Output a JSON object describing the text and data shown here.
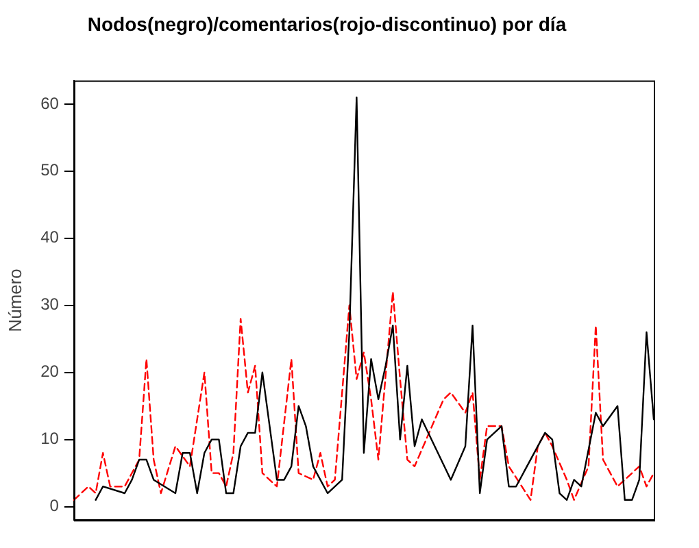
{
  "chart_data": {
    "type": "line",
    "title": "Nodos(negro)/comentarios(rojo-discontinuo) por día",
    "ylabel": "Número",
    "categories": [
      null,
      null,
      null,
      null,
      null,
      null,
      null,
      null,
      null,
      null,
      null,
      null,
      null,
      null,
      null,
      null,
      null,
      null,
      null,
      null,
      null,
      null,
      null,
      null,
      null,
      null,
      null,
      null,
      null,
      null,
      null,
      null,
      null,
      null,
      null,
      null,
      null,
      null,
      null,
      null,
      null,
      null,
      null,
      null,
      null,
      null,
      null,
      null,
      null,
      null,
      null,
      null,
      null,
      null,
      null,
      null,
      null,
      null,
      null,
      null,
      null,
      null,
      null,
      null,
      null,
      null,
      null,
      null,
      null,
      null,
      null,
      null,
      null,
      null,
      null,
      null,
      null,
      null,
      null,
      null,
      null
    ],
    "ylim": [
      -2,
      63.5
    ],
    "yticks": [
      0,
      10,
      20,
      30,
      40,
      50,
      60
    ],
    "grid": false,
    "legend": false,
    "series": [
      {
        "color": "#000000",
        "line_style": "solid",
        "values": [
          null,
          null,
          null,
          1,
          3,
          null,
          null,
          2,
          4,
          7,
          7,
          4,
          null,
          null,
          2,
          8,
          8,
          2,
          8,
          10,
          10,
          2,
          2,
          9,
          11,
          11,
          20,
          12,
          4,
          4,
          6,
          15,
          12,
          6,
          null,
          2,
          null,
          4,
          26,
          61,
          8,
          22,
          16,
          21,
          27,
          10,
          21,
          9,
          13,
          null,
          null,
          null,
          4,
          null,
          9,
          27,
          2,
          10,
          null,
          12,
          3,
          3,
          null,
          null,
          null,
          11,
          10,
          2,
          1,
          4,
          3,
          null,
          14,
          12,
          null,
          15,
          1,
          1,
          4,
          26,
          13
        ]
      },
      {
        "color": "#ff0000",
        "line_style": "dashed",
        "values": [
          1,
          null,
          3,
          2,
          8,
          3,
          null,
          3,
          null,
          7,
          22,
          7,
          2,
          null,
          9,
          null,
          6,
          null,
          20,
          5,
          5,
          3,
          8,
          28,
          17,
          21,
          5,
          null,
          3,
          null,
          22,
          5,
          null,
          4,
          8,
          3,
          4,
          null,
          30,
          19,
          23,
          16,
          7,
          null,
          32,
          19,
          7,
          6,
          null,
          null,
          null,
          16,
          17,
          null,
          14,
          17,
          4,
          12,
          null,
          12,
          6,
          null,
          null,
          1,
          9,
          11,
          9,
          null,
          4,
          1,
          null,
          6,
          27,
          7,
          null,
          3,
          null,
          null,
          6,
          3,
          5
        ]
      }
    ]
  }
}
